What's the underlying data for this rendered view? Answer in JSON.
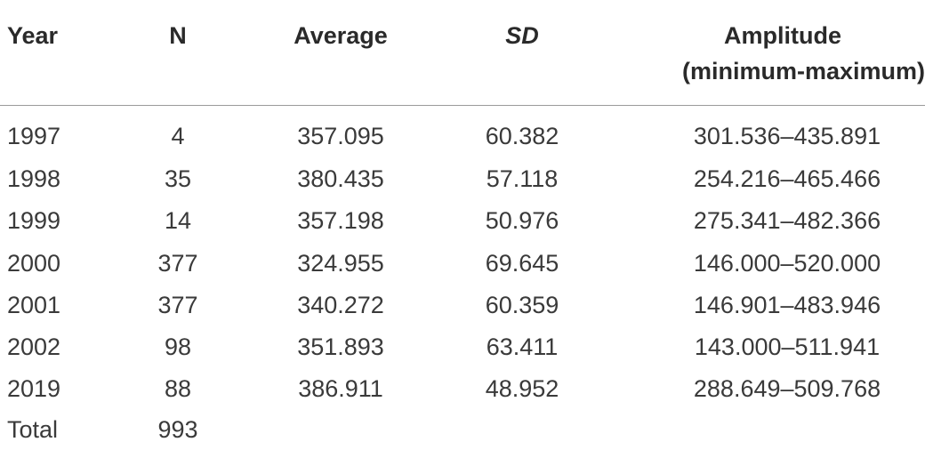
{
  "table": {
    "headers": {
      "year": "Year",
      "n": "N",
      "average": "Average",
      "sd": "SD",
      "amplitude_line1": "Amplitude",
      "amplitude_line2": "(minimum-maximum)"
    },
    "rows": [
      {
        "year": "1997",
        "n": "4",
        "average": "357.095",
        "sd": "60.382",
        "amplitude": "301.536–435.891"
      },
      {
        "year": "1998",
        "n": "35",
        "average": "380.435",
        "sd": "57.118",
        "amplitude": "254.216–465.466"
      },
      {
        "year": "1999",
        "n": "14",
        "average": "357.198",
        "sd": "50.976",
        "amplitude": "275.341–482.366"
      },
      {
        "year": "2000",
        "n": "377",
        "average": "324.955",
        "sd": "69.645",
        "amplitude": "146.000–520.000"
      },
      {
        "year": "2001",
        "n": "377",
        "average": "340.272",
        "sd": "60.359",
        "amplitude": "146.901–483.946"
      },
      {
        "year": "2002",
        "n": "98",
        "average": "351.893",
        "sd": "63.411",
        "amplitude": "143.000–511.941"
      },
      {
        "year": "2019",
        "n": "88",
        "average": "386.911",
        "sd": "48.952",
        "amplitude": "288.649–509.768"
      },
      {
        "year": "Total",
        "n": "993",
        "average": "",
        "sd": "",
        "amplitude": ""
      }
    ]
  }
}
